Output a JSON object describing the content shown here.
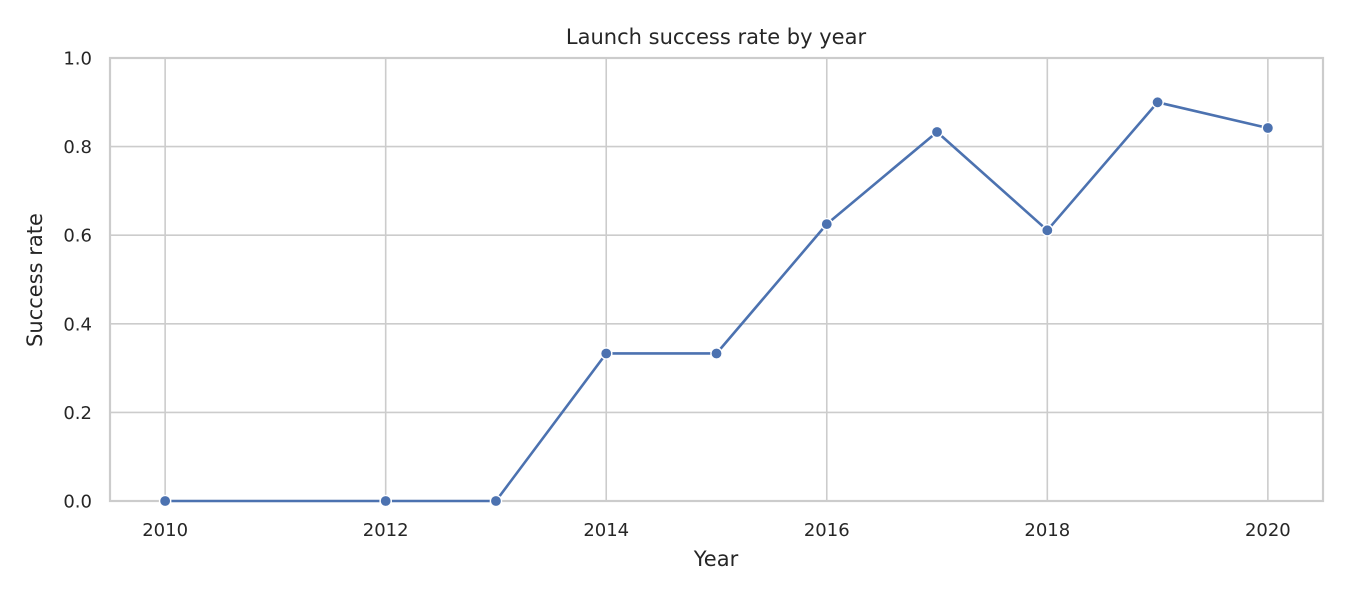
{
  "chart_data": {
    "type": "line",
    "title": "Launch success rate by year",
    "xlabel": "Year",
    "ylabel": "Success rate",
    "xlim": [
      2009.5,
      2020.5
    ],
    "ylim": [
      0.0,
      1.0
    ],
    "xticks": [
      2010,
      2012,
      2014,
      2016,
      2018,
      2020
    ],
    "xtick_labels": [
      "2010",
      "2012",
      "2014",
      "2016",
      "2018",
      "2020"
    ],
    "yticks": [
      0.0,
      0.2,
      0.4,
      0.6,
      0.8,
      1.0
    ],
    "ytick_labels": [
      "0.0",
      "0.2",
      "0.4",
      "0.6",
      "0.8",
      "1.0"
    ],
    "grid": true,
    "legend": "none",
    "series": [
      {
        "color": "#4c72b0",
        "x": [
          2010,
          2012,
          2013,
          2014,
          2015,
          2016,
          2017,
          2018,
          2019,
          2020
        ],
        "y": [
          0.0,
          0.0,
          0.0,
          0.333,
          0.333,
          0.625,
          0.833,
          0.611,
          0.9,
          0.842
        ]
      }
    ]
  }
}
